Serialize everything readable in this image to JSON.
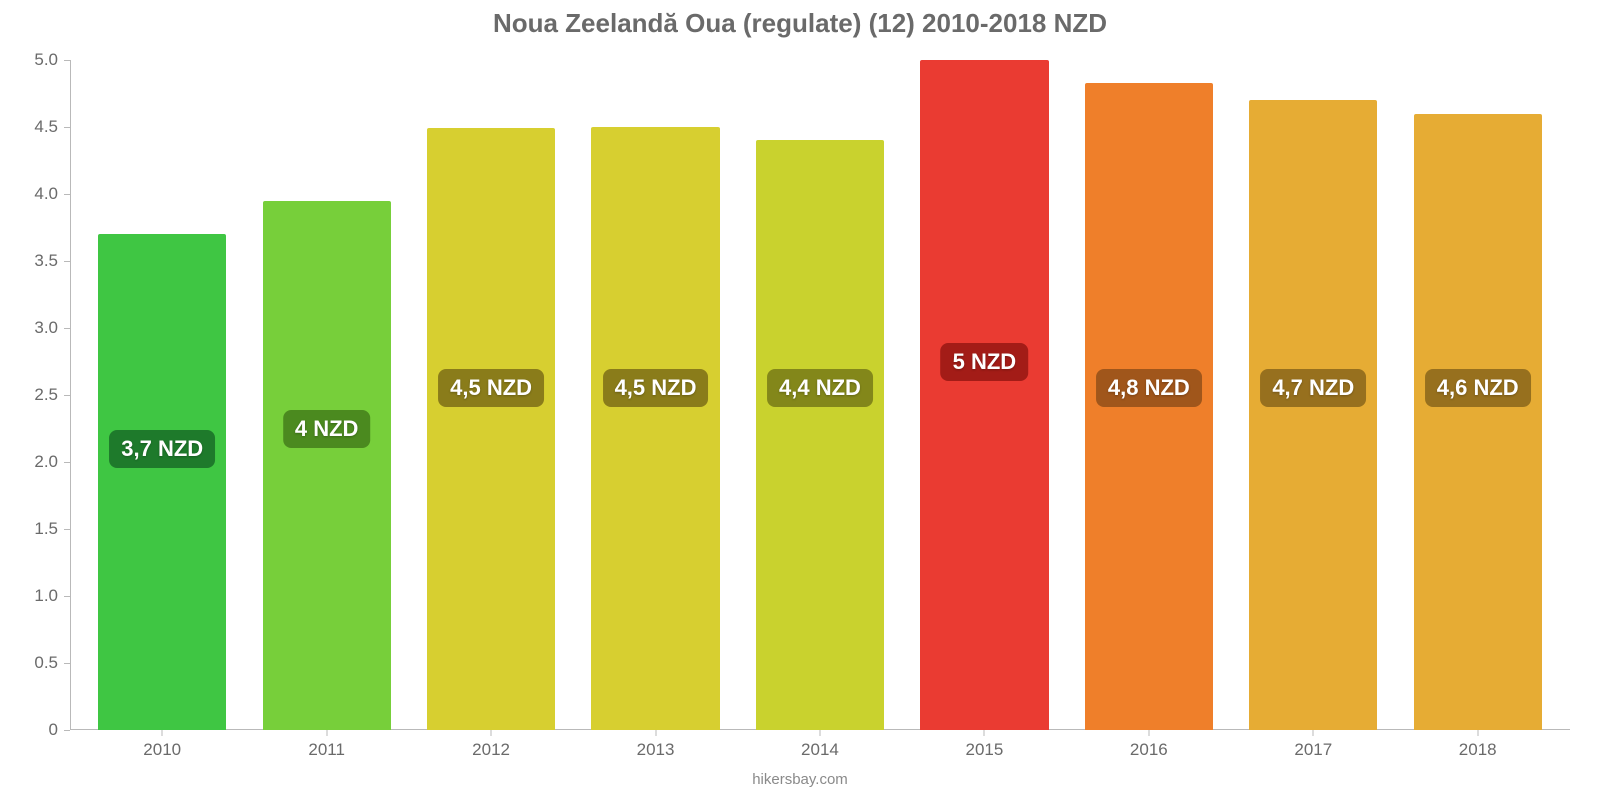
{
  "chart": {
    "type": "bar",
    "title": "Noua Zeelandă Oua (regulate) (12) 2010-2018 NZD",
    "title_fontsize": 26,
    "title_color": "#6a6a6a",
    "background_color": "#ffffff",
    "axis_color": "#b9b9b9",
    "tick_label_color": "#6a6a6a",
    "tick_label_fontsize": 17,
    "value_label_fontsize": 22,
    "attribution": "hikersbay.com",
    "attribution_fontsize": 15,
    "attribution_color": "#8a8a8a",
    "ylim": [
      0,
      5.0
    ],
    "yticks": [
      0,
      0.5,
      1.0,
      1.5,
      2.0,
      2.5,
      3.0,
      3.5,
      4.0,
      4.5,
      5.0
    ],
    "ytick_labels": [
      "0",
      "0.5",
      "1.0",
      "1.5",
      "2.0",
      "2.5",
      "3.0",
      "3.5",
      "4.0",
      "4.5",
      "5.0"
    ],
    "bar_width_ratio": 0.78,
    "value_badge_center_value": 2.55,
    "categories": [
      "2010",
      "2011",
      "2012",
      "2013",
      "2014",
      "2015",
      "2016",
      "2017",
      "2018"
    ],
    "values": [
      3.7,
      3.95,
      4.49,
      4.5,
      4.4,
      5.0,
      4.83,
      4.7,
      4.6
    ],
    "value_labels": [
      "3,7 NZD",
      "4 NZD",
      "4,5 NZD",
      "4,5 NZD",
      "4,4 NZD",
      "5 NZD",
      "4,8 NZD",
      "4,7 NZD",
      "4,6 NZD"
    ],
    "bar_colors": [
      "#3fc643",
      "#77cf3a",
      "#d7cf30",
      "#d7cf30",
      "#c9d22e",
      "#ea3b32",
      "#ef7f2a",
      "#e6ac34",
      "#e6ac34"
    ],
    "badge_colors": [
      "#1e7a2b",
      "#4b8a1f",
      "#8a7c1a",
      "#8a7c1a",
      "#83871a",
      "#a31c17",
      "#a0561b",
      "#97701e",
      "#97701e"
    ],
    "value_badge_offsets": [
      -0.45,
      -0.3,
      0,
      0,
      0,
      0.2,
      0,
      0,
      0
    ]
  }
}
